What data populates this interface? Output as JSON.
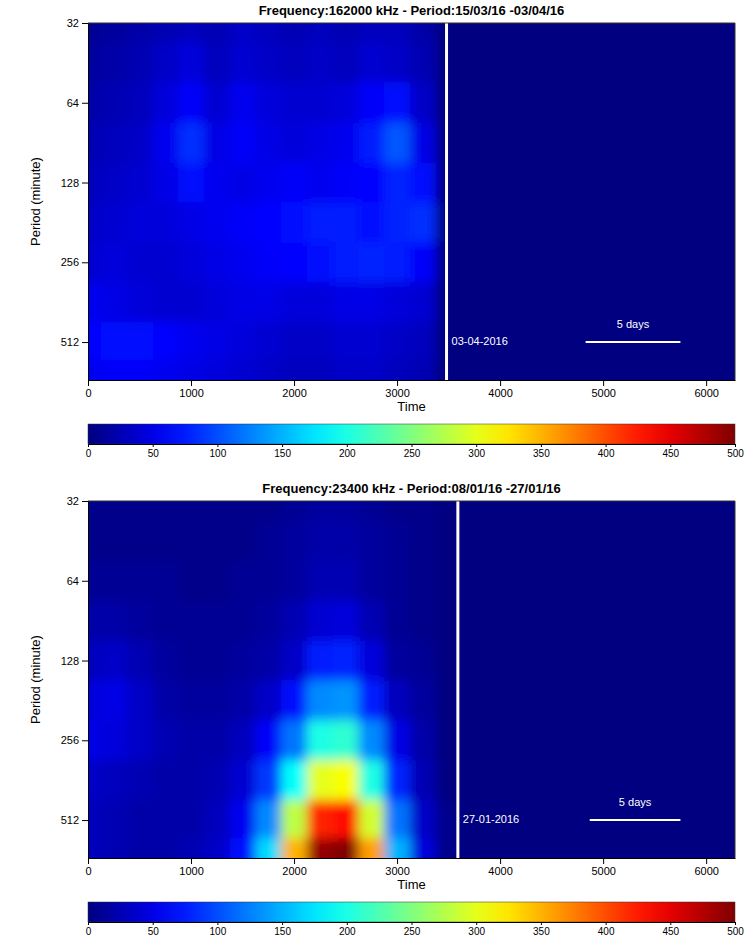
{
  "chart_data": [
    {
      "type": "heatmap",
      "title": "Frequency:162000 kHz - Period:15/03/16 -03/04/16",
      "x_label": "Time",
      "y_label": "Period (minute)",
      "x": [
        0,
        250,
        500,
        750,
        1000,
        1250,
        1500,
        1750,
        2000,
        2250,
        2500,
        2750,
        3000,
        3250,
        3500,
        3750,
        4000,
        4250,
        4500,
        4750,
        5000,
        5250,
        5500,
        5750,
        6000,
        6250
      ],
      "y": [
        32,
        45,
        64,
        91,
        128,
        181,
        256,
        362,
        512,
        700
      ],
      "values": [
        [
          10,
          15,
          20,
          25,
          30,
          25,
          35,
          30,
          25,
          30,
          25,
          30,
          30,
          20,
          0,
          0,
          0,
          0,
          0,
          0,
          0,
          0,
          0,
          0,
          0,
          0
        ],
        [
          15,
          20,
          25,
          35,
          45,
          30,
          40,
          35,
          30,
          35,
          30,
          40,
          35,
          25,
          0,
          0,
          0,
          0,
          0,
          0,
          0,
          0,
          0,
          0,
          0,
          0
        ],
        [
          20,
          25,
          30,
          45,
          60,
          40,
          55,
          45,
          40,
          40,
          45,
          60,
          70,
          35,
          0,
          0,
          0,
          0,
          0,
          0,
          0,
          0,
          0,
          0,
          0,
          0
        ],
        [
          25,
          30,
          35,
          55,
          85,
          50,
          60,
          50,
          45,
          50,
          55,
          75,
          105,
          50,
          0,
          0,
          0,
          0,
          0,
          0,
          0,
          0,
          0,
          0,
          0,
          0
        ],
        [
          30,
          35,
          40,
          50,
          70,
          55,
          50,
          55,
          60,
          55,
          60,
          65,
          80,
          70,
          0,
          0,
          0,
          0,
          0,
          0,
          0,
          0,
          0,
          0,
          0,
          0
        ],
        [
          35,
          40,
          45,
          45,
          50,
          55,
          60,
          65,
          70,
          75,
          75,
          70,
          80,
          85,
          0,
          0,
          0,
          0,
          0,
          0,
          0,
          0,
          0,
          0,
          0,
          0
        ],
        [
          40,
          45,
          40,
          40,
          45,
          50,
          55,
          60,
          65,
          70,
          75,
          80,
          75,
          60,
          0,
          0,
          0,
          0,
          0,
          0,
          0,
          0,
          0,
          0,
          0,
          0
        ],
        [
          55,
          50,
          45,
          40,
          40,
          45,
          50,
          50,
          45,
          45,
          50,
          50,
          45,
          40,
          0,
          0,
          0,
          0,
          0,
          0,
          0,
          0,
          0,
          0,
          0,
          0
        ],
        [
          65,
          70,
          70,
          65,
          55,
          50,
          45,
          40,
          35,
          35,
          40,
          40,
          35,
          30,
          0,
          0,
          0,
          0,
          0,
          0,
          0,
          0,
          0,
          0,
          0,
          0
        ],
        [
          55,
          60,
          60,
          55,
          50,
          45,
          40,
          35,
          30,
          30,
          35,
          35,
          30,
          25,
          0,
          0,
          0,
          0,
          0,
          0,
          0,
          0,
          0,
          0,
          0,
          0
        ]
      ],
      "xlim": [
        0,
        6280
      ],
      "ylim": [
        32,
        712
      ],
      "xticks": [
        0,
        1000,
        2000,
        3000,
        4000,
        5000,
        6000
      ],
      "yticks": [
        32,
        64,
        128,
        256,
        512
      ],
      "log": "y",
      "color": "jet",
      "colorbar": {
        "range": [
          0,
          500
        ],
        "ticks": [
          0,
          50,
          100,
          150,
          200,
          250,
          300,
          350,
          400,
          450,
          500
        ]
      },
      "vline": {
        "x": 3480,
        "label": "03-04-2016"
      },
      "scale_bar": {
        "x": [
          4830,
          5750
        ],
        "y": 512,
        "label": "5 days"
      }
    },
    {
      "type": "heatmap",
      "title": "Frequency:23400 kHz - Period:08/01/16 -27/01/16",
      "x_label": "Time",
      "y_label": "Period (minute)",
      "x": [
        0,
        250,
        500,
        750,
        1000,
        1250,
        1500,
        1750,
        2000,
        2250,
        2500,
        2750,
        3000,
        3250,
        3500,
        3750,
        4000,
        4250,
        4500,
        4750,
        5000,
        5250,
        5500,
        5750,
        6000,
        6250
      ],
      "y": [
        32,
        45,
        64,
        91,
        128,
        181,
        256,
        362,
        512,
        700
      ],
      "values": [
        [
          5,
          5,
          5,
          5,
          5,
          5,
          5,
          5,
          10,
          15,
          15,
          10,
          5,
          5,
          0,
          0,
          0,
          0,
          0,
          0,
          0,
          0,
          0,
          0,
          0,
          0
        ],
        [
          5,
          5,
          5,
          5,
          5,
          5,
          5,
          10,
          15,
          20,
          20,
          15,
          10,
          5,
          0,
          0,
          0,
          0,
          0,
          0,
          0,
          0,
          0,
          0,
          0,
          0
        ],
        [
          10,
          10,
          10,
          10,
          5,
          5,
          10,
          10,
          15,
          25,
          25,
          15,
          10,
          5,
          0,
          0,
          0,
          0,
          0,
          0,
          0,
          0,
          0,
          0,
          0,
          0
        ],
        [
          20,
          20,
          15,
          10,
          10,
          10,
          10,
          15,
          25,
          40,
          45,
          25,
          10,
          5,
          0,
          0,
          0,
          0,
          0,
          0,
          0,
          0,
          0,
          0,
          0,
          0
        ],
        [
          30,
          35,
          25,
          15,
          10,
          10,
          15,
          20,
          35,
          75,
          80,
          45,
          15,
          10,
          0,
          0,
          0,
          0,
          0,
          0,
          0,
          0,
          0,
          0,
          0,
          0
        ],
        [
          45,
          50,
          35,
          20,
          15,
          15,
          20,
          35,
          70,
          130,
          135,
          75,
          30,
          15,
          0,
          0,
          0,
          0,
          0,
          0,
          0,
          0,
          0,
          0,
          0,
          0
        ],
        [
          50,
          45,
          35,
          25,
          20,
          20,
          30,
          60,
          120,
          200,
          210,
          130,
          50,
          20,
          0,
          0,
          0,
          0,
          0,
          0,
          0,
          0,
          0,
          0,
          0,
          0
        ],
        [
          35,
          30,
          25,
          20,
          20,
          25,
          40,
          90,
          190,
          300,
          310,
          200,
          80,
          25,
          0,
          0,
          0,
          0,
          0,
          0,
          0,
          0,
          0,
          0,
          0,
          0
        ],
        [
          30,
          25,
          20,
          20,
          20,
          30,
          55,
          130,
          280,
          420,
          430,
          290,
          120,
          35,
          5,
          0,
          0,
          0,
          0,
          0,
          0,
          0,
          0,
          0,
          0,
          0
        ],
        [
          30,
          25,
          20,
          20,
          25,
          35,
          70,
          170,
          350,
          490,
          500,
          360,
          150,
          45,
          5,
          0,
          0,
          0,
          0,
          0,
          0,
          0,
          0,
          0,
          0,
          0
        ]
      ],
      "xlim": [
        0,
        6280
      ],
      "ylim": [
        32,
        712
      ],
      "xticks": [
        0,
        1000,
        2000,
        3000,
        4000,
        5000,
        6000
      ],
      "yticks": [
        32,
        64,
        128,
        256,
        512
      ],
      "log": "y",
      "color": "jet",
      "colorbar": {
        "range": [
          0,
          500
        ],
        "ticks": [
          0,
          50,
          100,
          150,
          200,
          250,
          300,
          350,
          400,
          450,
          500
        ]
      },
      "vline": {
        "x": 3590,
        "label": "27-01-2016"
      },
      "scale_bar": {
        "x": [
          4870,
          5750
        ],
        "y": 512,
        "label": "5 days"
      }
    }
  ]
}
